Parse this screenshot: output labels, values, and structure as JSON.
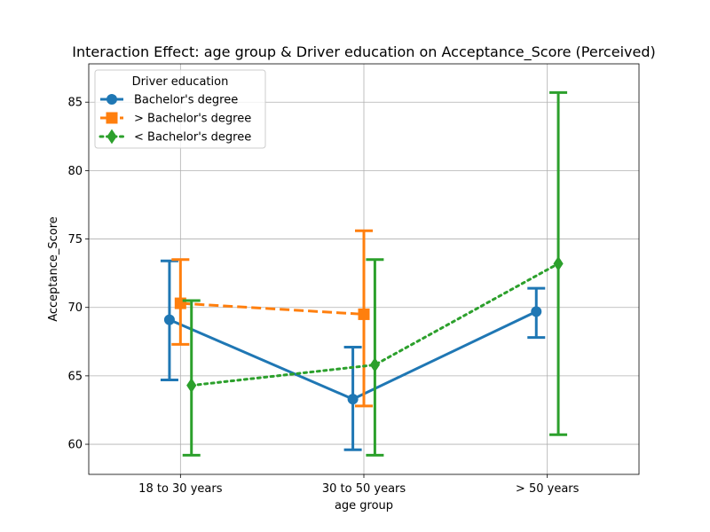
{
  "chart_data": {
    "type": "line",
    "title": "Interaction Effect: age group & Driver education on Acceptance_Score (Perceived)",
    "xlabel": "age group",
    "ylabel": "Acceptance_Score",
    "categories": [
      "18 to 30 years",
      "30 to 50 years",
      "> 50 years"
    ],
    "ylim": [
      57.8,
      87.8
    ],
    "yticks": [
      60,
      65,
      70,
      75,
      80,
      85
    ],
    "grid": true,
    "legend": {
      "title": "Driver education",
      "placement": "top-left"
    },
    "series": [
      {
        "name": "Bachelor's degree",
        "color": "#1f77b4",
        "marker": "circle",
        "linestyle": "solid",
        "values": [
          69.1,
          63.3,
          69.7
        ],
        "ci_low": [
          64.7,
          59.6,
          67.8
        ],
        "ci_high": [
          73.4,
          67.1,
          71.4
        ]
      },
      {
        "name": "> Bachelor's degree",
        "color": "#ff7f0e",
        "marker": "square",
        "linestyle": "dashed",
        "values": [
          70.3,
          69.5,
          null
        ],
        "ci_low": [
          67.3,
          62.8,
          null
        ],
        "ci_high": [
          73.5,
          75.6,
          null
        ]
      },
      {
        "name": "< Bachelor's degree",
        "color": "#2ca02c",
        "marker": "diamond",
        "linestyle": "dotted",
        "values": [
          64.3,
          65.8,
          73.2
        ],
        "ci_low": [
          59.2,
          59.2,
          60.7
        ],
        "ci_high": [
          70.5,
          73.5,
          85.7
        ]
      }
    ]
  }
}
